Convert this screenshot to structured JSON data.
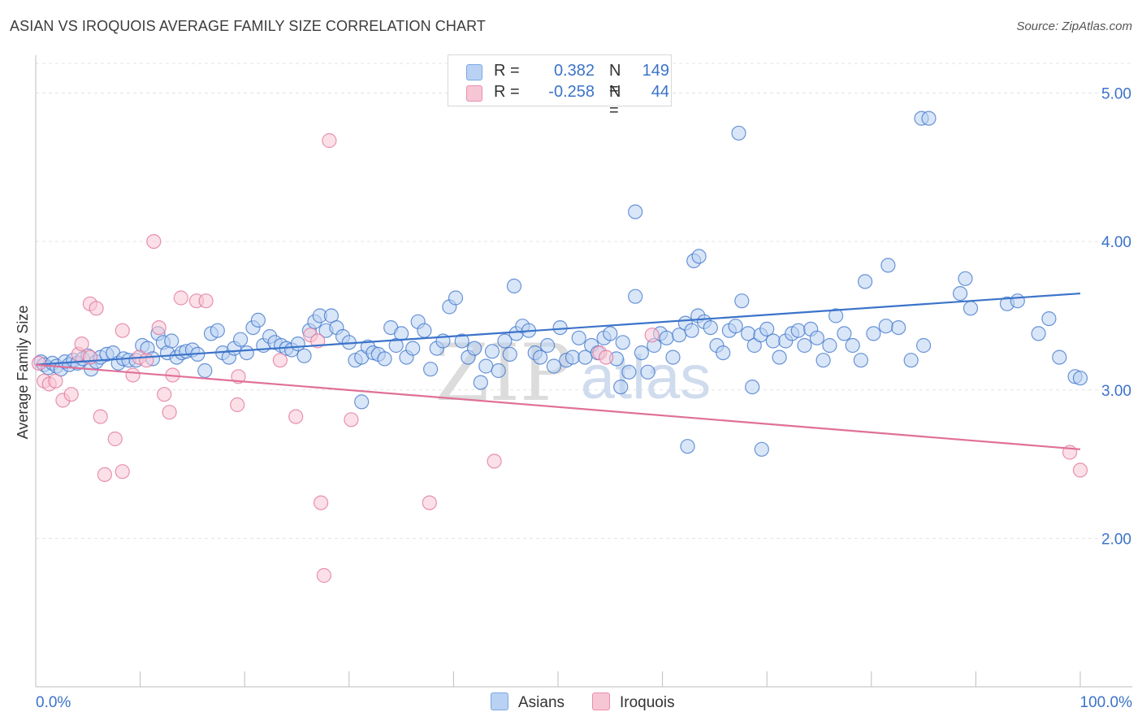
{
  "header": {
    "title": "ASIAN VS IROQUOIS AVERAGE FAMILY SIZE CORRELATION CHART",
    "source": "Source: ZipAtlas.com"
  },
  "watermark": {
    "zip": "ZIP",
    "atlas": "atlas"
  },
  "legend": {
    "rows": [
      {
        "r_label": "R =",
        "r_value": "0.382",
        "n_label": "N =",
        "n_value": "149",
        "color": "#7aa7e3",
        "fill": "#b9d2f3"
      },
      {
        "r_label": "R =",
        "r_value": "-0.258",
        "n_label": "N =",
        "n_value": "44",
        "color": "#ea8eac",
        "fill": "#f7c6d5"
      }
    ]
  },
  "bottom_legend": {
    "asians": "Asians",
    "iroquois": "Iroquois"
  },
  "chart_data": {
    "type": "scatter",
    "title": "ASIAN VS IROQUOIS AVERAGE FAMILY SIZE CORRELATION CHART",
    "xlabel": "",
    "ylabel": "Average Family Size",
    "xlim": [
      0,
      100
    ],
    "ylim": [
      1.0,
      5.2
    ],
    "x_tick_labels": [
      "0.0%",
      "100.0%"
    ],
    "y_ticks": [
      2.0,
      3.0,
      4.0,
      5.0
    ],
    "y_tick_labels": [
      "2.00",
      "3.00",
      "4.00",
      "5.00"
    ],
    "grid": true,
    "legend_position": "top-center",
    "series": [
      {
        "name": "Asians",
        "color": "#3b73c9",
        "fill": "#b9d2f3",
        "r": 0.382,
        "n": 149,
        "trend": {
          "x": [
            0,
            100
          ],
          "y": [
            3.17,
            3.65
          ]
        },
        "points": [
          [
            0.5,
            3.19
          ],
          [
            0.8,
            3.17
          ],
          [
            1.2,
            3.15
          ],
          [
            1.6,
            3.18
          ],
          [
            2.0,
            3.16
          ],
          [
            2.4,
            3.14
          ],
          [
            2.8,
            3.19
          ],
          [
            3.2,
            3.17
          ],
          [
            3.6,
            3.2
          ],
          [
            4.0,
            3.18
          ],
          [
            4.5,
            3.21
          ],
          [
            5.0,
            3.23
          ],
          [
            5.3,
            3.14
          ],
          [
            5.8,
            3.19
          ],
          [
            6.2,
            3.22
          ],
          [
            6.8,
            3.24
          ],
          [
            7.4,
            3.25
          ],
          [
            7.9,
            3.18
          ],
          [
            8.4,
            3.21
          ],
          [
            8.9,
            3.2
          ],
          [
            9.6,
            3.2
          ],
          [
            10.2,
            3.3
          ],
          [
            10.7,
            3.28
          ],
          [
            11.2,
            3.21
          ],
          [
            11.7,
            3.38
          ],
          [
            12.2,
            3.32
          ],
          [
            12.6,
            3.25
          ],
          [
            13.0,
            3.33
          ],
          [
            13.5,
            3.22
          ],
          [
            14.0,
            3.25
          ],
          [
            14.4,
            3.26
          ],
          [
            15.0,
            3.27
          ],
          [
            15.5,
            3.24
          ],
          [
            16.2,
            3.13
          ],
          [
            16.8,
            3.38
          ],
          [
            17.4,
            3.4
          ],
          [
            17.9,
            3.25
          ],
          [
            18.5,
            3.22
          ],
          [
            19.0,
            3.28
          ],
          [
            19.6,
            3.34
          ],
          [
            20.2,
            3.25
          ],
          [
            20.8,
            3.42
          ],
          [
            21.3,
            3.47
          ],
          [
            21.8,
            3.3
          ],
          [
            22.4,
            3.36
          ],
          [
            22.9,
            3.32
          ],
          [
            23.5,
            3.3
          ],
          [
            24.0,
            3.28
          ],
          [
            24.5,
            3.27
          ],
          [
            25.1,
            3.31
          ],
          [
            25.7,
            3.23
          ],
          [
            26.2,
            3.4
          ],
          [
            26.7,
            3.46
          ],
          [
            27.2,
            3.5
          ],
          [
            27.8,
            3.4
          ],
          [
            28.3,
            3.5
          ],
          [
            28.8,
            3.42
          ],
          [
            29.4,
            3.36
          ],
          [
            30.0,
            3.32
          ],
          [
            30.6,
            3.2
          ],
          [
            31.2,
            3.22
          ],
          [
            31.8,
            3.29
          ],
          [
            32.3,
            3.25
          ],
          [
            32.8,
            3.24
          ],
          [
            33.4,
            3.21
          ],
          [
            34.0,
            3.42
          ],
          [
            34.5,
            3.3
          ],
          [
            35.0,
            3.38
          ],
          [
            35.5,
            3.22
          ],
          [
            36.1,
            3.28
          ],
          [
            36.6,
            3.46
          ],
          [
            37.2,
            3.4
          ],
          [
            37.8,
            3.14
          ],
          [
            38.4,
            3.28
          ],
          [
            39.0,
            3.33
          ],
          [
            39.6,
            3.56
          ],
          [
            40.2,
            3.62
          ],
          [
            40.8,
            3.33
          ],
          [
            41.4,
            3.22
          ],
          [
            42.0,
            3.28
          ],
          [
            42.6,
            3.05
          ],
          [
            43.1,
            3.16
          ],
          [
            43.7,
            3.26
          ],
          [
            44.3,
            3.13
          ],
          [
            44.9,
            3.33
          ],
          [
            45.4,
            3.24
          ],
          [
            46.0,
            3.38
          ],
          [
            46.6,
            3.43
          ],
          [
            47.2,
            3.4
          ],
          [
            47.8,
            3.25
          ],
          [
            48.3,
            3.22
          ],
          [
            49.0,
            3.3
          ],
          [
            49.6,
            3.16
          ],
          [
            50.2,
            3.42
          ],
          [
            50.8,
            3.2
          ],
          [
            51.4,
            3.22
          ],
          [
            52.0,
            3.35
          ],
          [
            52.6,
            3.22
          ],
          [
            53.2,
            3.3
          ],
          [
            53.8,
            3.25
          ],
          [
            54.4,
            3.35
          ],
          [
            55.0,
            3.38
          ],
          [
            55.6,
            3.21
          ],
          [
            56.2,
            3.32
          ],
          [
            56.8,
            3.12
          ],
          [
            57.4,
            3.63
          ],
          [
            58.0,
            3.25
          ],
          [
            58.6,
            3.12
          ],
          [
            59.2,
            3.3
          ],
          [
            59.8,
            3.38
          ],
          [
            60.4,
            3.35
          ],
          [
            61.0,
            3.22
          ],
          [
            61.6,
            3.37
          ],
          [
            62.2,
            3.45
          ],
          [
            62.8,
            3.4
          ],
          [
            63.4,
            3.5
          ],
          [
            64.0,
            3.46
          ],
          [
            64.6,
            3.42
          ],
          [
            65.2,
            3.3
          ],
          [
            65.8,
            3.25
          ],
          [
            66.4,
            3.4
          ],
          [
            67.0,
            3.43
          ],
          [
            67.6,
            3.6
          ],
          [
            68.2,
            3.38
          ],
          [
            68.8,
            3.3
          ],
          [
            69.4,
            3.37
          ],
          [
            70.0,
            3.41
          ],
          [
            70.6,
            3.33
          ],
          [
            71.2,
            3.22
          ],
          [
            71.8,
            3.33
          ],
          [
            72.4,
            3.38
          ],
          [
            73.0,
            3.4
          ],
          [
            73.6,
            3.3
          ],
          [
            74.2,
            3.41
          ],
          [
            74.8,
            3.35
          ],
          [
            75.4,
            3.2
          ],
          [
            76.0,
            3.3
          ],
          [
            76.6,
            3.5
          ],
          [
            77.4,
            3.38
          ],
          [
            78.2,
            3.3
          ],
          [
            79.0,
            3.2
          ],
          [
            80.2,
            3.38
          ],
          [
            81.4,
            3.43
          ],
          [
            82.6,
            3.42
          ],
          [
            83.8,
            3.2
          ],
          [
            85.0,
            3.3
          ],
          [
            62.4,
            2.62
          ],
          [
            56.0,
            3.02
          ],
          [
            31.2,
            2.92
          ],
          [
            68.6,
            3.02
          ]
        ],
        "outliers": [
          [
            67.3,
            4.73
          ],
          [
            57.4,
            4.2
          ],
          [
            84.8,
            4.83
          ],
          [
            85.5,
            4.83
          ],
          [
            63.0,
            3.87
          ],
          [
            63.5,
            3.9
          ],
          [
            79.4,
            3.73
          ],
          [
            81.6,
            3.84
          ],
          [
            88.5,
            3.65
          ],
          [
            89.0,
            3.75
          ],
          [
            99.5,
            3.09
          ],
          [
            89.5,
            3.55
          ],
          [
            93.0,
            3.58
          ],
          [
            94.0,
            3.6
          ],
          [
            100.0,
            3.08
          ],
          [
            69.5,
            2.6
          ],
          [
            96.0,
            3.38
          ],
          [
            97.0,
            3.48
          ],
          [
            98.0,
            3.22
          ],
          [
            45.8,
            3.7
          ]
        ]
      },
      {
        "name": "Iroquois",
        "color": "#e07098",
        "fill": "#f7c6d5",
        "r": -0.258,
        "n": 44,
        "trend": {
          "x": [
            0,
            100
          ],
          "y": [
            3.17,
            2.6
          ]
        },
        "points": [
          [
            0.3,
            3.18
          ],
          [
            0.8,
            3.06
          ],
          [
            1.3,
            3.04
          ],
          [
            1.9,
            3.06
          ],
          [
            2.6,
            2.93
          ],
          [
            3.4,
            2.97
          ],
          [
            4.1,
            3.24
          ],
          [
            4.4,
            3.31
          ],
          [
            5.2,
            3.22
          ],
          [
            5.2,
            3.58
          ],
          [
            5.8,
            3.55
          ],
          [
            6.2,
            2.82
          ],
          [
            6.6,
            2.43
          ],
          [
            7.6,
            2.67
          ],
          [
            8.3,
            3.4
          ],
          [
            8.3,
            2.45
          ],
          [
            9.3,
            3.1
          ],
          [
            9.9,
            3.22
          ],
          [
            10.6,
            3.2
          ],
          [
            11.3,
            4.0
          ],
          [
            11.8,
            3.42
          ],
          [
            12.3,
            2.97
          ],
          [
            12.8,
            2.85
          ],
          [
            13.1,
            3.1
          ],
          [
            13.9,
            3.62
          ],
          [
            15.4,
            3.6
          ],
          [
            16.3,
            3.6
          ],
          [
            19.3,
            2.9
          ],
          [
            19.4,
            3.09
          ],
          [
            23.4,
            3.2
          ],
          [
            24.9,
            2.82
          ],
          [
            26.3,
            3.37
          ],
          [
            27.0,
            3.33
          ],
          [
            27.3,
            2.24
          ],
          [
            27.6,
            1.75
          ],
          [
            28.1,
            4.68
          ],
          [
            30.2,
            2.8
          ],
          [
            37.7,
            2.24
          ],
          [
            43.9,
            2.52
          ],
          [
            54.0,
            3.25
          ],
          [
            54.6,
            3.22
          ],
          [
            59.0,
            3.37
          ],
          [
            99.0,
            2.58
          ],
          [
            100.0,
            2.46
          ]
        ]
      }
    ]
  }
}
